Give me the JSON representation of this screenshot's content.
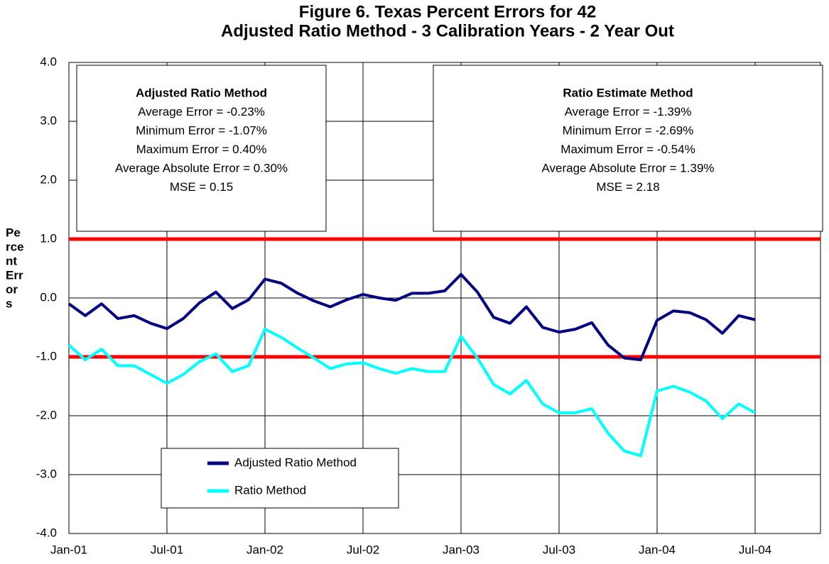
{
  "chart_data": {
    "type": "line",
    "title_lines": [
      "Figure 6.  Texas Percent Errors for 42",
      "Adjusted Ratio Method - 3 Calibration Years - 2 Year Out"
    ],
    "ylabel_lines": [
      "Pe",
      "rce",
      "nt",
      "Err",
      "or",
      "s"
    ],
    "x": [
      0,
      1,
      2,
      3,
      4,
      5,
      6,
      7,
      8,
      9,
      10,
      11,
      12,
      13,
      14,
      15,
      16,
      17,
      18,
      19,
      20,
      21,
      22,
      23,
      24,
      25,
      26,
      27,
      28,
      29,
      30,
      31,
      32,
      33,
      34,
      35,
      36,
      37,
      38,
      39,
      40,
      41,
      42
    ],
    "series": [
      {
        "name": "Adjusted Ratio Method",
        "color": "#000080",
        "values": [
          -0.1,
          -0.3,
          -0.1,
          -0.35,
          -0.3,
          -0.43,
          -0.52,
          -0.35,
          -0.08,
          0.1,
          -0.18,
          -0.03,
          0.32,
          0.25,
          0.08,
          -0.05,
          -0.15,
          -0.03,
          0.06,
          0.0,
          -0.04,
          0.08,
          0.08,
          0.12,
          0.4,
          0.1,
          -0.33,
          -0.43,
          -0.15,
          -0.5,
          -0.58,
          -0.53,
          -0.42,
          -0.8,
          -1.02,
          -1.05,
          -0.38,
          -0.22,
          -0.25,
          -0.37,
          -0.6,
          -0.3,
          -0.37
        ]
      },
      {
        "name": "Ratio Method",
        "color": "#00ffff",
        "values": [
          -0.8,
          -1.05,
          -0.87,
          -1.15,
          -1.15,
          -1.3,
          -1.45,
          -1.3,
          -1.08,
          -0.95,
          -1.25,
          -1.15,
          -0.53,
          -0.67,
          -0.85,
          -1.02,
          -1.2,
          -1.12,
          -1.1,
          -1.2,
          -1.28,
          -1.2,
          -1.25,
          -1.25,
          -0.65,
          -1.02,
          -1.47,
          -1.63,
          -1.4,
          -1.8,
          -1.95,
          -1.95,
          -1.88,
          -2.3,
          -2.6,
          -2.68,
          -1.58,
          -1.5,
          -1.6,
          -1.75,
          -2.05,
          -1.8,
          -1.95
        ]
      }
    ],
    "xlim": [
      0,
      46
    ],
    "xticks": [
      {
        "value": 0,
        "label": "Jan-01"
      },
      {
        "value": 6,
        "label": "Jul-01"
      },
      {
        "value": 12,
        "label": "Jan-02"
      },
      {
        "value": 18,
        "label": "Jul-02"
      },
      {
        "value": 24,
        "label": "Jan-03"
      },
      {
        "value": 30,
        "label": "Jul-03"
      },
      {
        "value": 36,
        "label": "Jan-04"
      },
      {
        "value": 42,
        "label": "Jul-04"
      }
    ],
    "ylim": [
      -4,
      4
    ],
    "yticks": [
      {
        "value": 4,
        "label": "4.0"
      },
      {
        "value": 3,
        "label": "3.0"
      },
      {
        "value": 2,
        "label": "2.0"
      },
      {
        "value": 1,
        "label": "1.0"
      },
      {
        "value": 0,
        "label": "0.0"
      },
      {
        "value": -1,
        "label": "-1.0"
      },
      {
        "value": -2,
        "label": "-2.0"
      },
      {
        "value": -3,
        "label": "-3.0"
      },
      {
        "value": -4,
        "label": "-4.0"
      }
    ],
    "grid": true,
    "reference_lines": [
      1,
      -1
    ],
    "reference_color": "#ff0000",
    "annotations": [
      {
        "lines": [
          "Adjusted Ratio Method",
          "Average Error = -0.23%",
          "Minimum Error = -1.07%",
          "Maximum Error = 0.40%",
          "Average Absolute Error = 0.30%",
          "MSE = 0.15"
        ]
      },
      {
        "lines": [
          "Ratio Estimate Method",
          "Average Error = -1.39%",
          "Minimum Error = -2.69%",
          "Maximum Error = -0.54%",
          "Average Absolute Error = 1.39%",
          "MSE = 2.18"
        ]
      }
    ]
  }
}
